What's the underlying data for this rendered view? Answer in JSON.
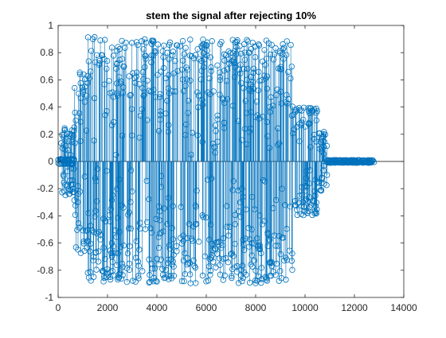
{
  "chart_data": {
    "type": "stem",
    "title": "stem the signal after rejecting 10%",
    "xlabel": "",
    "ylabel": "",
    "xlim": [
      0,
      14000
    ],
    "ylim": [
      -1,
      1
    ],
    "xticks": [
      "0",
      "2000",
      "4000",
      "6000",
      "8000",
      "10000",
      "12000",
      "14000"
    ],
    "yticks": [
      "-1",
      "-0.8",
      "-0.6",
      "-0.4",
      "-0.2",
      "0",
      "0.2",
      "0.4",
      "0.6",
      "0.8",
      "1"
    ],
    "marker": "circle",
    "baseline": 0,
    "series_color": "#0072BD",
    "grid": false,
    "legend": "none",
    "segments": [
      {
        "x_start": 0,
        "x_end": 650,
        "amplitude": 0.02
      },
      {
        "x_start": 100,
        "x_end": 650,
        "amplitude": 0.25
      },
      {
        "x_start": 650,
        "x_end": 1200,
        "amplitude": 0.7
      },
      {
        "x_start": 1200,
        "x_end": 1500,
        "amplitude": 0.93
      },
      {
        "x_start": 1500,
        "x_end": 9500,
        "amplitude": 0.9
      },
      {
        "x_start": 9500,
        "x_end": 10500,
        "amplitude": 0.4
      },
      {
        "x_start": 10500,
        "x_end": 10900,
        "amplitude": 0.22
      },
      {
        "x_start": 10900,
        "x_end": 12800,
        "amplitude": 0.01
      }
    ]
  }
}
